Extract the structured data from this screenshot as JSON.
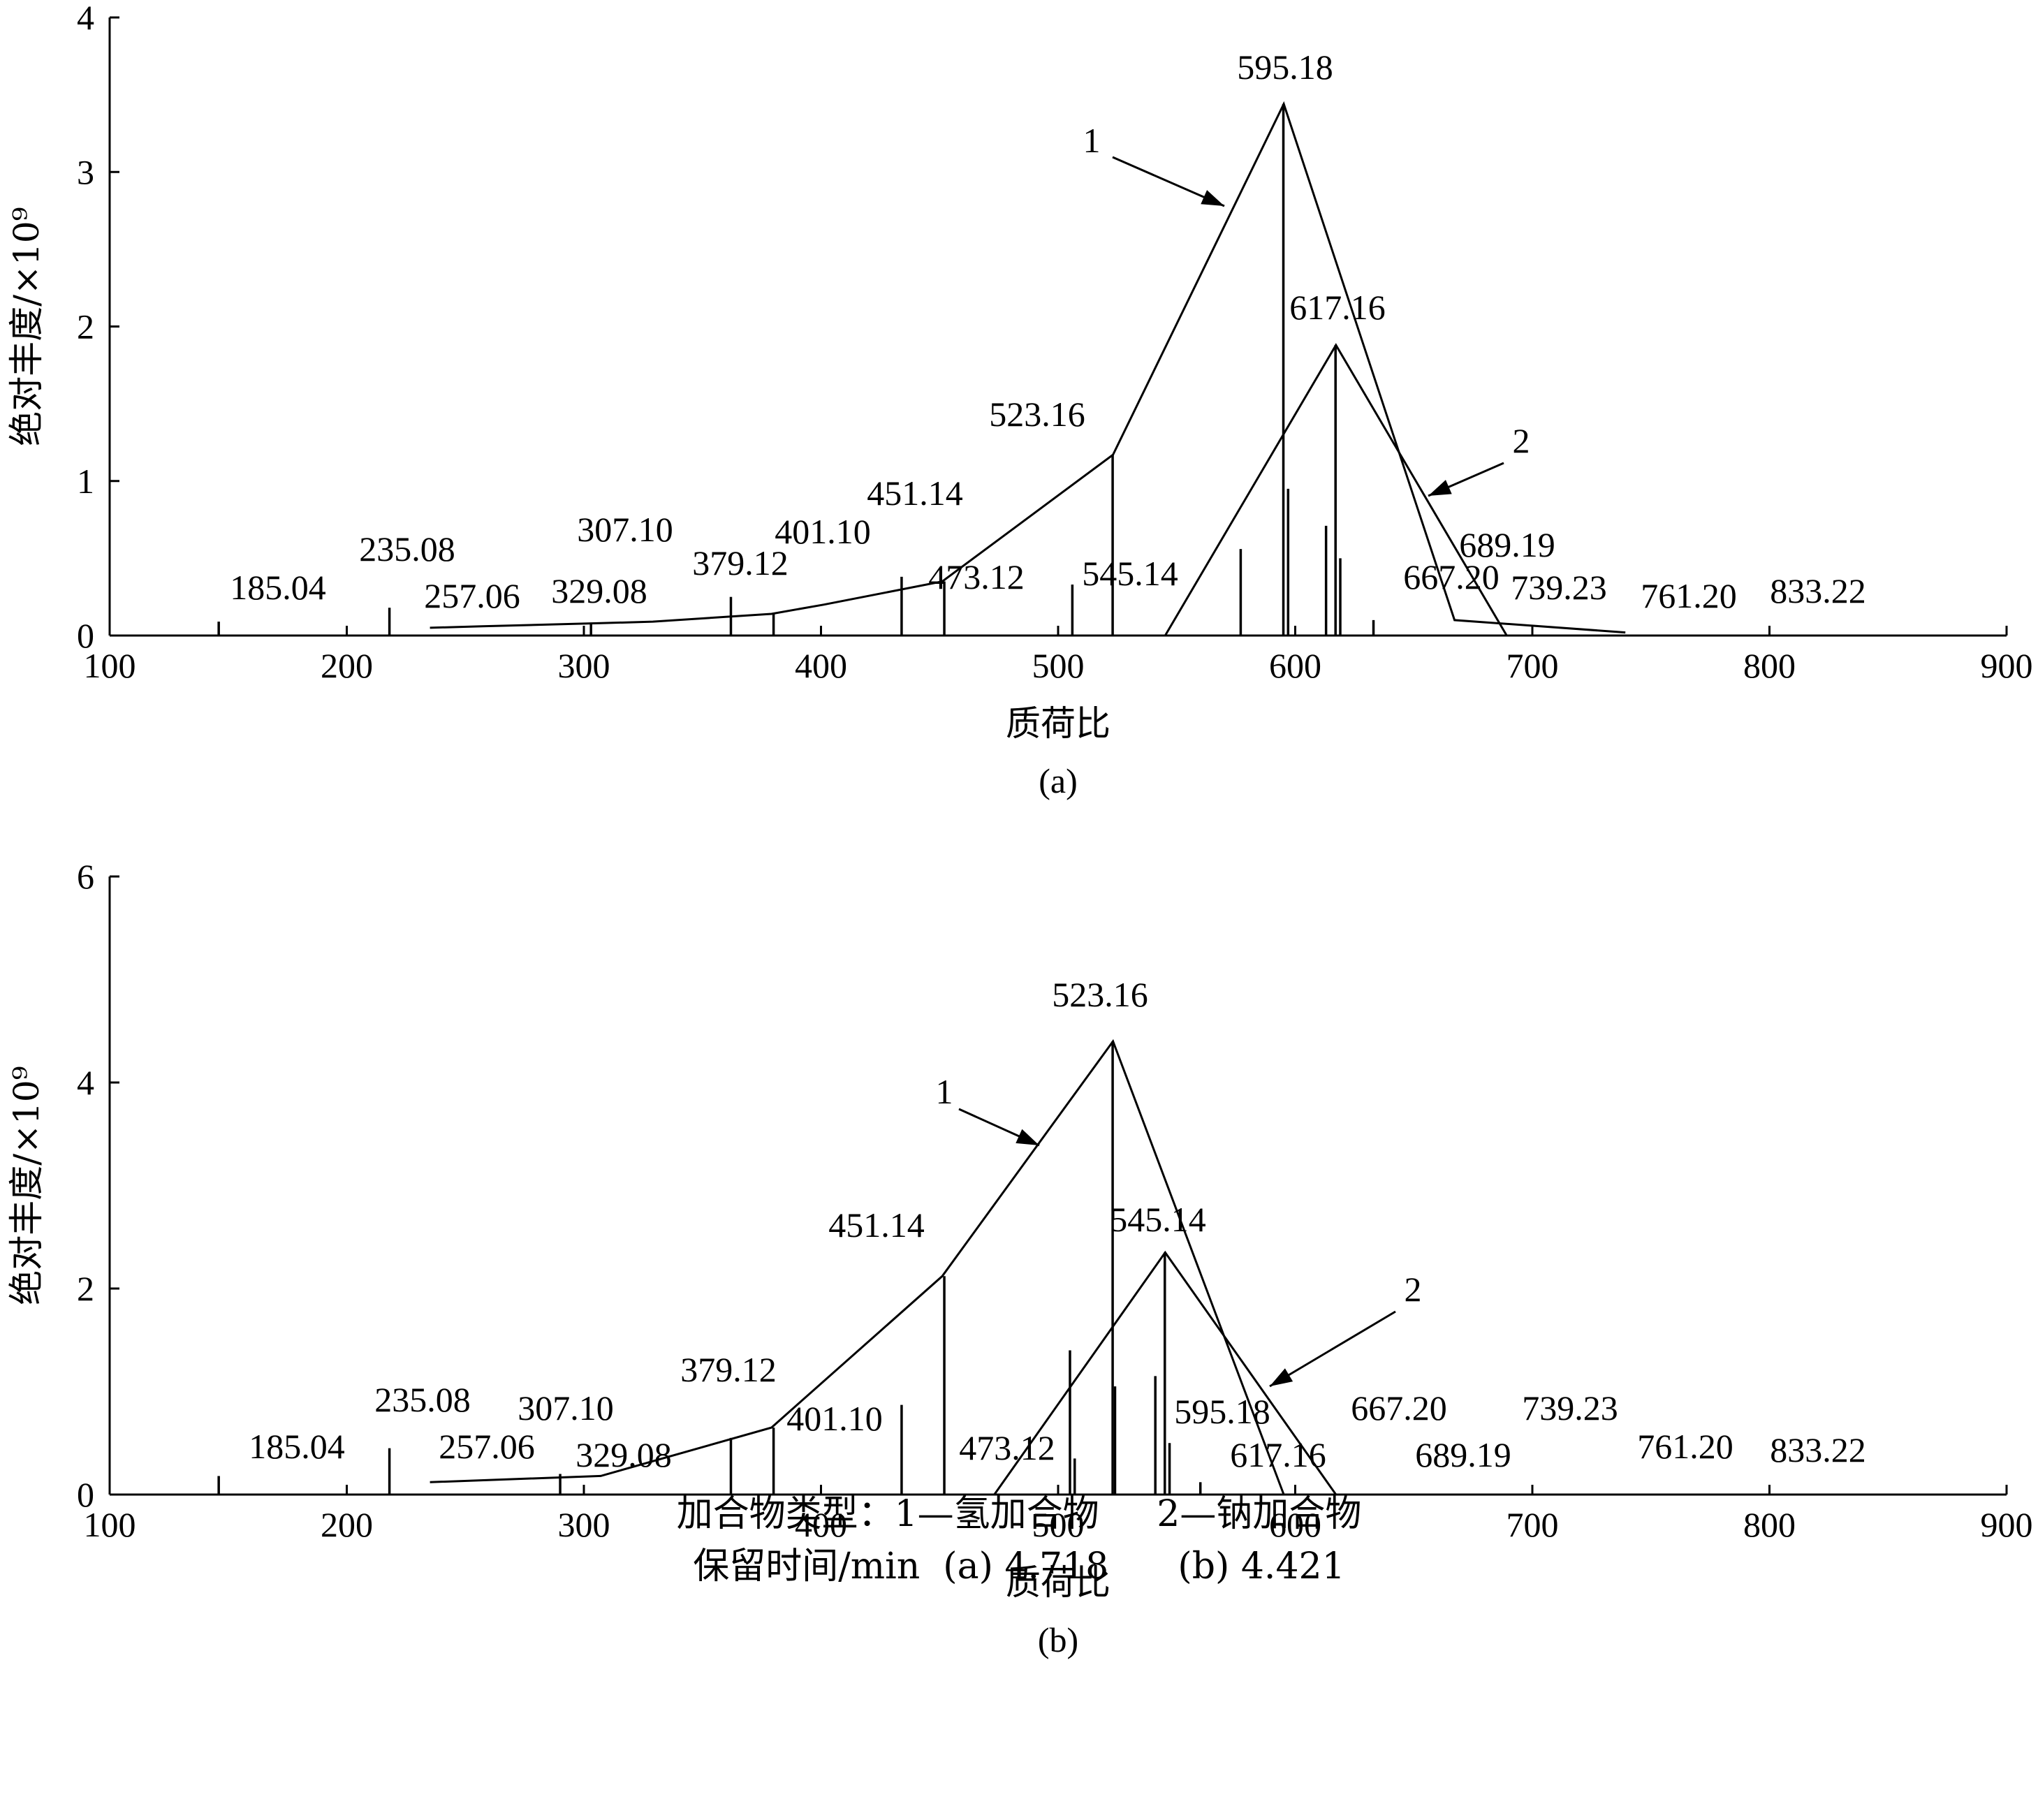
{
  "charts": [
    {
      "panel_label": "(a)",
      "xlabel": "质荷比",
      "ylabel": "绝对丰度/×10⁹",
      "chart_data": {
        "type": "bar",
        "xlim": [
          100,
          900
        ],
        "ylim": [
          0,
          4
        ],
        "x_ticks": [
          100,
          200,
          300,
          400,
          500,
          600,
          700,
          800,
          900
        ],
        "y_ticks": [
          0,
          1,
          2,
          3,
          4
        ],
        "sticks": [
          {
            "x": 146,
            "y": 0.09
          },
          {
            "x": 218,
            "y": 0.18
          },
          {
            "x": 303,
            "y": 0.08
          },
          {
            "x": 362,
            "y": 0.25
          },
          {
            "x": 380,
            "y": 0.14
          },
          {
            "x": 434,
            "y": 0.38
          },
          {
            "x": 452,
            "y": 0.35
          },
          {
            "x": 506,
            "y": 0.33
          },
          {
            "x": 523,
            "y": 1.17
          },
          {
            "x": 577,
            "y": 0.56
          },
          {
            "x": 595,
            "y": 3.44
          },
          {
            "x": 597,
            "y": 0.95
          },
          {
            "x": 613,
            "y": 0.71
          },
          {
            "x": 617,
            "y": 1.88
          },
          {
            "x": 619,
            "y": 0.5
          },
          {
            "x": 633,
            "y": 0.1
          }
        ],
        "series": [
          {
            "name": "1",
            "x": [
              235.08,
              257.06,
              307.1,
              329.08,
              379.12,
              401.1,
              451.14,
              523.16,
              595.18,
              667.2,
              739.23
            ],
            "y": [
              0.05,
              0.06,
              0.08,
              0.09,
              0.14,
              0.2,
              0.35,
              1.17,
              3.44,
              0.1,
              0.02
            ]
          },
          {
            "name": "2",
            "x": [
              545.14,
              617.16,
              689.19
            ],
            "y": [
              0.0,
              1.88,
              0.0
            ]
          }
        ],
        "peak_labels": [
          {
            "text": "185.04"
          },
          {
            "text": "235.08"
          },
          {
            "text": "257.06"
          },
          {
            "text": "307.10"
          },
          {
            "text": "329.08"
          },
          {
            "text": "379.12"
          },
          {
            "text": "401.10"
          },
          {
            "text": "451.14"
          },
          {
            "text": "473.12"
          },
          {
            "text": "523.16"
          },
          {
            "text": "545.14"
          },
          {
            "text": "595.18"
          },
          {
            "text": "617.16"
          },
          {
            "text": "667.20"
          },
          {
            "text": "689.19"
          },
          {
            "text": "739.23"
          },
          {
            "text": "761.20"
          },
          {
            "text": "833.22"
          }
        ],
        "annotations": [
          {
            "text": "1"
          },
          {
            "text": "2"
          }
        ]
      }
    },
    {
      "panel_label": "(b)",
      "xlabel": "质荷比",
      "ylabel": "绝对丰度/×10⁹",
      "chart_data": {
        "type": "bar",
        "xlim": [
          100,
          900
        ],
        "ylim": [
          0,
          6
        ],
        "x_ticks": [
          100,
          200,
          300,
          400,
          500,
          600,
          700,
          800,
          900
        ],
        "y_ticks": [
          0,
          2,
          4,
          6
        ],
        "sticks": [
          {
            "x": 146,
            "y": 0.18
          },
          {
            "x": 218,
            "y": 0.45
          },
          {
            "x": 290,
            "y": 0.2
          },
          {
            "x": 362,
            "y": 0.55
          },
          {
            "x": 380,
            "y": 0.65
          },
          {
            "x": 434,
            "y": 0.87
          },
          {
            "x": 452,
            "y": 2.12
          },
          {
            "x": 505,
            "y": 1.4
          },
          {
            "x": 507,
            "y": 0.35
          },
          {
            "x": 523,
            "y": 4.4
          },
          {
            "x": 524,
            "y": 1.05
          },
          {
            "x": 541,
            "y": 1.15
          },
          {
            "x": 545,
            "y": 2.35
          },
          {
            "x": 547,
            "y": 0.5
          },
          {
            "x": 560,
            "y": 0.12
          }
        ],
        "series": [
          {
            "name": "1",
            "x": [
              235.08,
              307.1,
              379.12,
              451.14,
              523.16,
              595.18
            ],
            "y": [
              0.12,
              0.18,
              0.65,
              2.12,
              4.4,
              0.0
            ]
          },
          {
            "name": "2",
            "x": [
              473.12,
              545.14,
              617.16
            ],
            "y": [
              0.0,
              2.35,
              0.0
            ]
          }
        ],
        "peak_labels": [
          {
            "text": "185.04"
          },
          {
            "text": "235.08"
          },
          {
            "text": "257.06"
          },
          {
            "text": "307.10"
          },
          {
            "text": "329.08"
          },
          {
            "text": "379.12"
          },
          {
            "text": "401.10"
          },
          {
            "text": "451.14"
          },
          {
            "text": "473.12"
          },
          {
            "text": "523.16"
          },
          {
            "text": "545.14"
          },
          {
            "text": "595.18"
          },
          {
            "text": "617.16"
          },
          {
            "text": "667.20"
          },
          {
            "text": "689.19"
          },
          {
            "text": "739.23"
          },
          {
            "text": "761.20"
          },
          {
            "text": "833.22"
          }
        ],
        "annotations": [
          {
            "text": "1"
          },
          {
            "text": "2"
          }
        ]
      }
    }
  ],
  "caption": {
    "line1": "加合物类型：1—氢加合物     2—钠加合物",
    "line2": "保留时间/min  (a) 4.718      (b) 4.421"
  },
  "colors": {
    "ink": "#000000",
    "background": "#ffffff"
  }
}
